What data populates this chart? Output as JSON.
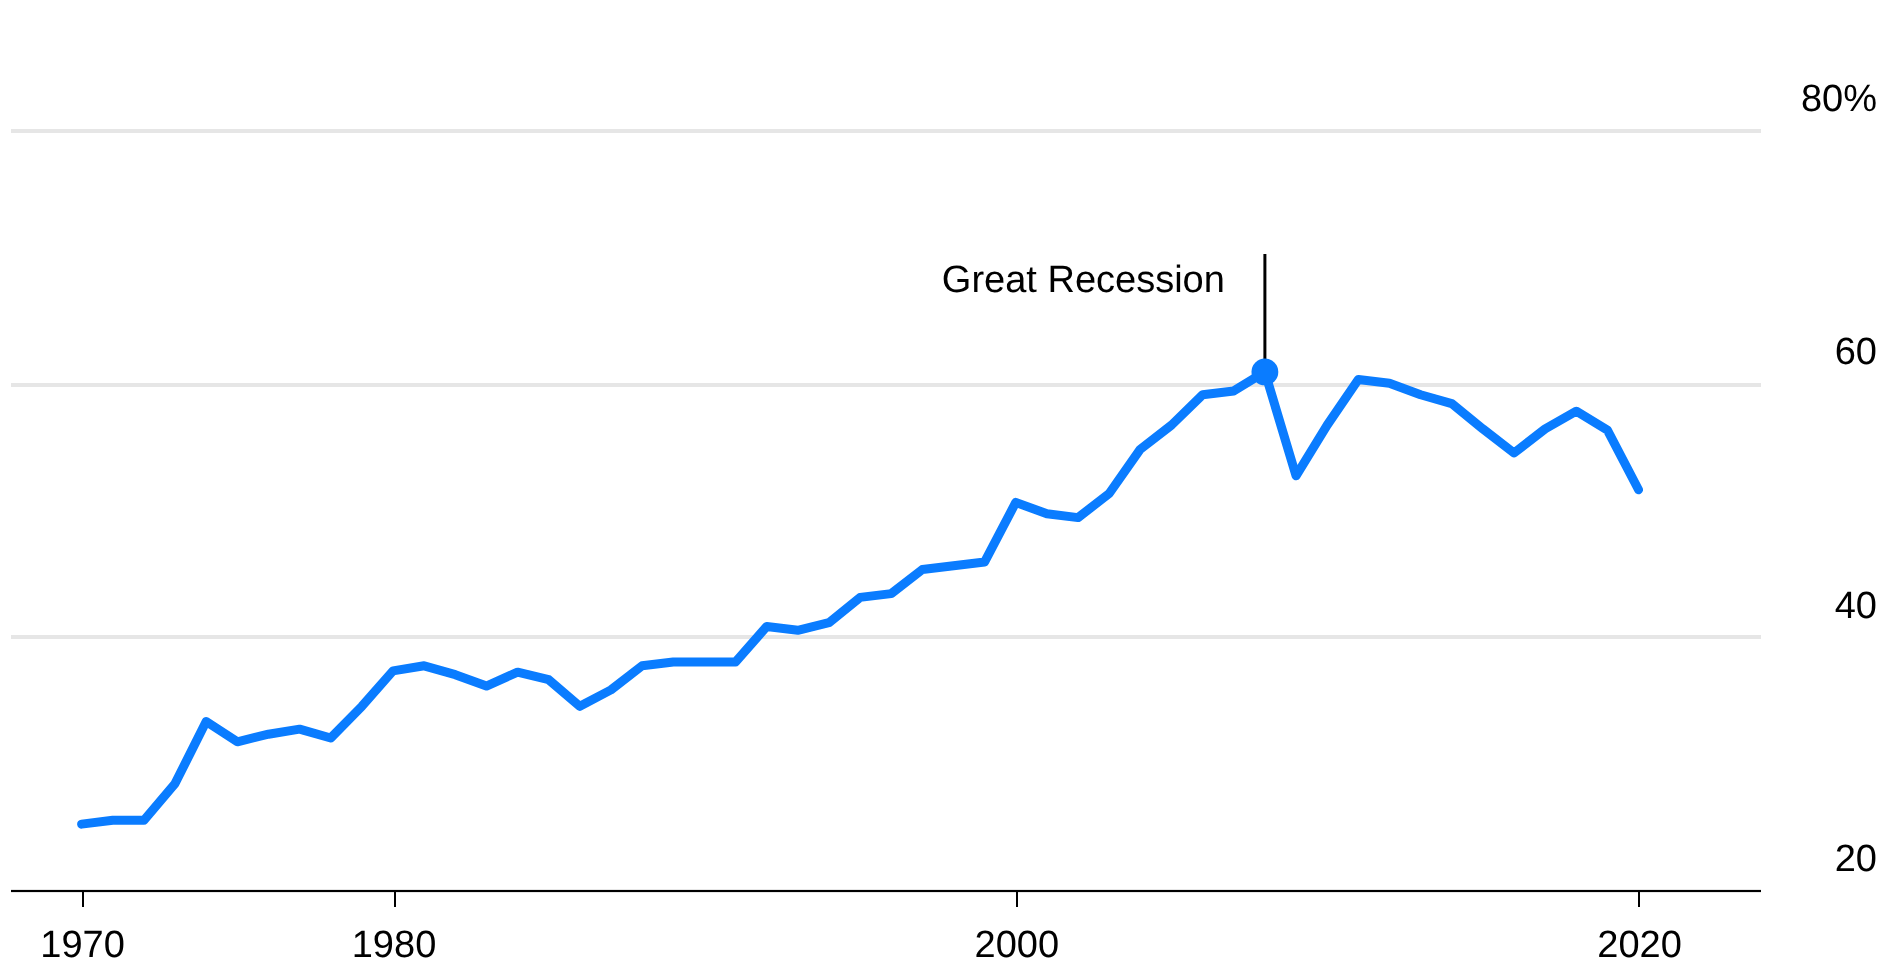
{
  "chart_data": {
    "type": "line",
    "x": [
      1970,
      1971,
      1972,
      1973,
      1974,
      1975,
      1976,
      1977,
      1978,
      1979,
      1980,
      1981,
      1982,
      1983,
      1984,
      1985,
      1986,
      1987,
      1988,
      1989,
      1990,
      1991,
      1992,
      1993,
      1994,
      1995,
      1996,
      1997,
      1998,
      1999,
      2000,
      2001,
      2002,
      2003,
      2004,
      2005,
      2006,
      2007,
      2008,
      2009,
      2010,
      2011,
      2012,
      2013,
      2014,
      2015,
      2016,
      2017,
      2018,
      2019,
      2020
    ],
    "series": [
      {
        "color": "#0a7cff",
        "values": [
          25.2,
          25.5,
          25.5,
          28.4,
          33.3,
          31.7,
          32.3,
          32.7,
          32.0,
          34.5,
          37.3,
          37.7,
          37.0,
          36.1,
          37.2,
          36.6,
          34.5,
          35.8,
          37.7,
          38.0,
          38.0,
          38.0,
          40.8,
          40.5,
          41.1,
          43.1,
          43.4,
          45.3,
          45.6,
          45.9,
          50.6,
          49.7,
          49.4,
          51.3,
          54.8,
          56.7,
          59.1,
          59.4,
          60.9,
          52.7,
          56.7,
          60.3,
          60.0,
          59.1,
          58.4,
          56.4,
          54.5,
          56.4,
          57.8,
          56.3,
          51.6
        ]
      }
    ],
    "xlim": [
      1967.7,
      2023.9
    ],
    "xticks": [
      1970,
      1980,
      2000,
      2020
    ],
    "ylim": [
      20,
      80
    ],
    "yticks": [
      20,
      40,
      60,
      {
        "value": 80,
        "label": "80%"
      }
    ],
    "grid": "y",
    "marker": "none",
    "line_style": "solid",
    "annotations": [
      {
        "text": "Great Recession",
        "x": 2008,
        "y": 60.9
      }
    ]
  }
}
